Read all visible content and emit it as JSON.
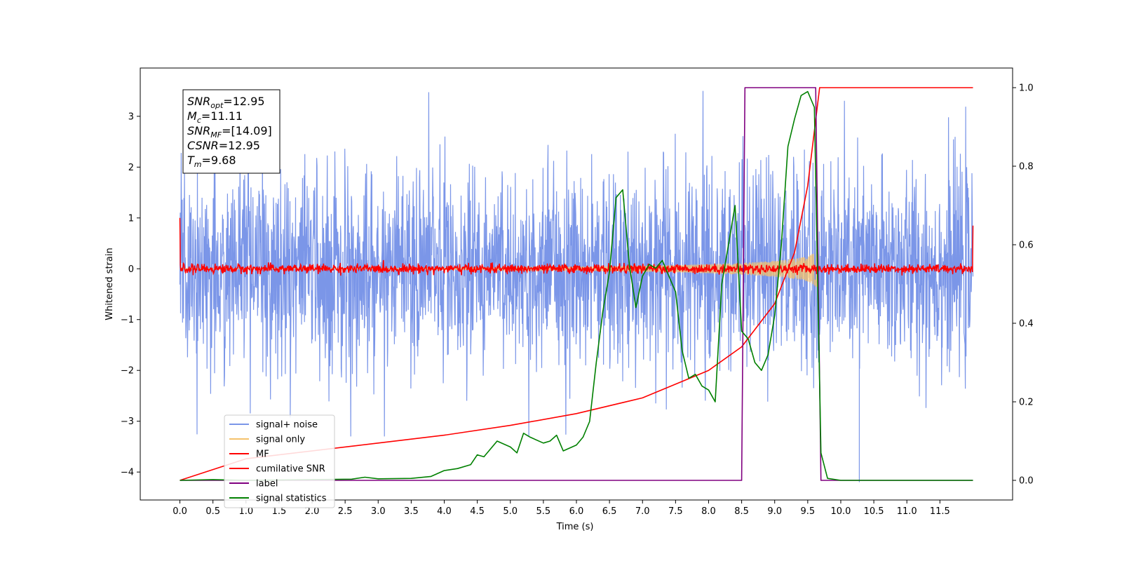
{
  "chart_data": {
    "type": "line",
    "xlabel": "Time (s)",
    "ylabel": "Whitened strain",
    "xlim": [
      -0.6,
      12.6
    ],
    "ylim": [
      -4.55,
      3.95
    ],
    "ylim_right": [
      -0.05,
      1.05
    ],
    "x_ticks": [
      "0.0",
      "0.5",
      "1.0",
      "1.5",
      "2.0",
      "2.5",
      "3.0",
      "3.5",
      "4.0",
      "4.5",
      "5.0",
      "5.5",
      "6.0",
      "6.5",
      "7.0",
      "7.5",
      "8.0",
      "8.5",
      "9.0",
      "9.5",
      "10.0",
      "10.5",
      "11.0",
      "11.5"
    ],
    "y_ticks_left": [
      "3",
      "2",
      "1",
      "0",
      "−1",
      "−2",
      "−3",
      "−4"
    ],
    "y_ticks_right": [
      "1.0",
      "0.8",
      "0.6",
      "0.4",
      "0.2",
      "0.0"
    ],
    "grid": false,
    "legend_position": "lower-left",
    "series": [
      {
        "name": "signal+ noise",
        "color": "#7b96e8",
        "axis": "left",
        "kind": "noise",
        "x_range": [
          0.0,
          12.0
        ],
        "amplitude_range": [
          -3.3,
          3.5
        ]
      },
      {
        "name": "signal only",
        "color": "#f5c26b",
        "axis": "left",
        "kind": "chirp",
        "x_range": [
          0.0,
          9.68
        ],
        "peak_amplitude": 0.8
      },
      {
        "name": "MF",
        "color": "#ff0000",
        "axis": "left",
        "kind": "noise",
        "x_range": [
          0.0,
          12.0
        ],
        "amplitude_range": [
          -0.1,
          0.1
        ],
        "endpoints": [
          1.0,
          0.85
        ]
      },
      {
        "name": "cumilative SNR",
        "color": "#ff0000",
        "axis": "right",
        "x": [
          0.0,
          1.0,
          2.0,
          3.0,
          4.0,
          5.0,
          6.0,
          7.0,
          8.0,
          8.5,
          9.0,
          9.3,
          9.5,
          9.68,
          12.0
        ],
        "y": [
          0.0,
          0.055,
          0.075,
          0.095,
          0.115,
          0.14,
          0.17,
          0.21,
          0.28,
          0.34,
          0.45,
          0.58,
          0.75,
          1.0,
          1.0
        ]
      },
      {
        "name": "label",
        "color": "#800080",
        "axis": "right",
        "x": [
          0.0,
          8.5,
          8.55,
          9.62,
          9.7,
          12.0
        ],
        "y": [
          0.0,
          0.0,
          1.0,
          1.0,
          0.0,
          0.0
        ]
      },
      {
        "name": "signal statistics",
        "color": "#008000",
        "axis": "right",
        "x": [
          0.0,
          0.5,
          1.0,
          2.0,
          2.6,
          2.8,
          3.0,
          3.5,
          3.8,
          4.0,
          4.2,
          4.4,
          4.5,
          4.6,
          4.8,
          5.0,
          5.1,
          5.2,
          5.3,
          5.5,
          5.6,
          5.7,
          5.8,
          6.0,
          6.1,
          6.2,
          6.3,
          6.4,
          6.5,
          6.6,
          6.7,
          6.8,
          6.9,
          7.0,
          7.1,
          7.2,
          7.3,
          7.4,
          7.5,
          7.6,
          7.7,
          7.8,
          7.9,
          8.0,
          8.1,
          8.2,
          8.3,
          8.4,
          8.5,
          8.6,
          8.7,
          8.8,
          8.9,
          9.0,
          9.1,
          9.2,
          9.3,
          9.4,
          9.5,
          9.6,
          9.7,
          9.8,
          10.0,
          12.0
        ],
        "y": [
          0.0,
          0.002,
          0.0,
          0.002,
          0.003,
          0.008,
          0.004,
          0.005,
          0.01,
          0.025,
          0.03,
          0.04,
          0.065,
          0.06,
          0.1,
          0.085,
          0.07,
          0.12,
          0.11,
          0.095,
          0.1,
          0.115,
          0.075,
          0.09,
          0.11,
          0.15,
          0.3,
          0.43,
          0.53,
          0.72,
          0.74,
          0.55,
          0.44,
          0.52,
          0.55,
          0.54,
          0.56,
          0.52,
          0.48,
          0.33,
          0.26,
          0.27,
          0.24,
          0.23,
          0.2,
          0.5,
          0.6,
          0.7,
          0.38,
          0.36,
          0.3,
          0.28,
          0.32,
          0.42,
          0.6,
          0.85,
          0.92,
          0.98,
          0.99,
          0.95,
          0.07,
          0.005,
          0.0,
          0.0
        ]
      }
    ],
    "annotation": {
      "lines": [
        {
          "sym": "SNR",
          "sub": "opt",
          "value": "=12.95"
        },
        {
          "sym": "M",
          "sub": "c",
          "value": "=11.11"
        },
        {
          "sym": "SNR",
          "sub": "MF",
          "value": "=[14.09]"
        },
        {
          "sym": "CSNR",
          "sub": "",
          "value": "=12.95"
        },
        {
          "sym": "T",
          "sub": "m",
          "value": "=9.68"
        }
      ]
    }
  }
}
